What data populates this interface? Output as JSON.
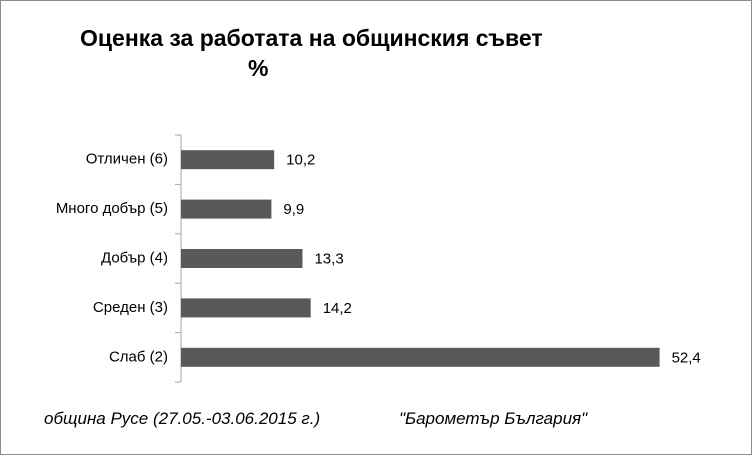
{
  "chart_data": {
    "type": "bar",
    "orientation": "horizontal",
    "title": "Оценка за работата на общинския съвет",
    "unit": "%",
    "categories": [
      "Отличен (6)",
      "Много добър (5)",
      "Добър (4)",
      "Среден (3)",
      "Слаб (2)"
    ],
    "values": [
      10.2,
      9.9,
      13.3,
      14.2,
      52.4
    ],
    "value_labels": [
      "10,2",
      "9,9",
      "13,3",
      "14,2",
      "52,4"
    ],
    "color": "#595959",
    "xlim": [
      0,
      60
    ],
    "source": "община Русе (27.05.-03.06.2015 г.)",
    "source_org": "\"Барометър България\""
  }
}
